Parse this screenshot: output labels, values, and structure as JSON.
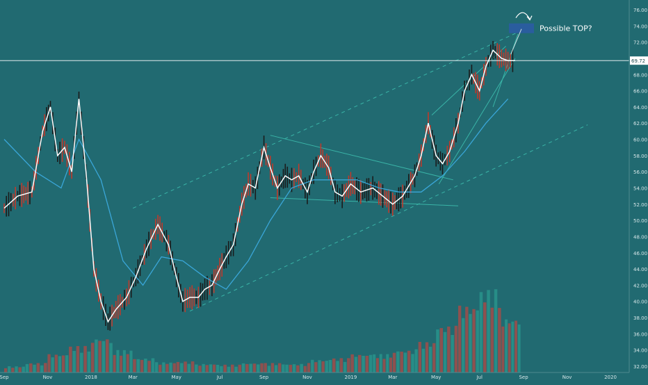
{
  "colors": {
    "background": "#216a71",
    "price_line": "#ffffff",
    "candle_up": "#1b1b1b",
    "candle_down": "#c0392b",
    "ma": "#3aa6d8",
    "trend": "#3ab5a8",
    "volume_up": "#2a9a8f",
    "volume_down": "#b24a44",
    "annotation_box": "#2a5d9e",
    "price_tag": "#ffffff"
  },
  "annotation": {
    "text": "Possible TOP?"
  },
  "last_price": "69.72",
  "chart_data": {
    "type": "line",
    "title": "",
    "xlabel": "",
    "ylabel": "",
    "ylim": [
      31.0,
      77.0
    ],
    "y_ticks": [
      "76.00",
      "74.00",
      "72.00",
      "70.00",
      "68.00",
      "66.00",
      "64.00",
      "62.00",
      "60.00",
      "58.00",
      "56.00",
      "54.00",
      "52.00",
      "50.00",
      "48.00",
      "46.00",
      "44.00",
      "42.00",
      "40.00",
      "38.00",
      "36.00",
      "34.00",
      "32.00"
    ],
    "x_ticks": [
      "Sep",
      "Nov",
      "2018",
      "Mar",
      "May",
      "Jul",
      "Sep",
      "Nov",
      "2019",
      "Mar",
      "May",
      "Jul",
      "Sep",
      "Nov",
      "2020"
    ],
    "grid": false,
    "series": [
      {
        "x": [
          "2017-09-01",
          "2017-09-20",
          "2017-10-10",
          "2017-10-25",
          "2017-11-05",
          "2017-11-15",
          "2017-11-25",
          "2017-12-05",
          "2017-12-15",
          "2017-12-25",
          "2018-01-05",
          "2018-01-15",
          "2018-01-25",
          "2018-02-05",
          "2018-02-20",
          "2018-03-05",
          "2018-03-20",
          "2018-04-05",
          "2018-04-20",
          "2018-05-01",
          "2018-05-10",
          "2018-05-20",
          "2018-06-01",
          "2018-06-10",
          "2018-06-20",
          "2018-07-01",
          "2018-07-10",
          "2018-07-20",
          "2018-08-01",
          "2018-08-10",
          "2018-08-20",
          "2018-09-01",
          "2018-09-10",
          "2018-09-20",
          "2018-10-01",
          "2018-10-10",
          "2018-10-20",
          "2018-11-01",
          "2018-11-10",
          "2018-11-20",
          "2018-12-01",
          "2018-12-10",
          "2018-12-20",
          "2019-01-01",
          "2019-01-15",
          "2019-02-01",
          "2019-02-15",
          "2019-03-01",
          "2019-03-15",
          "2019-04-01",
          "2019-04-10",
          "2019-04-20",
          "2019-05-01",
          "2019-05-10",
          "2019-05-20",
          "2019-06-01",
          "2019-06-10",
          "2019-06-20",
          "2019-07-01",
          "2019-07-10",
          "2019-07-20",
          "2019-08-01",
          "2019-08-10",
          "2019-08-20"
        ],
        "values": [
          51.5,
          53.0,
          53.5,
          61.0,
          64.0,
          58.0,
          59.0,
          56.0,
          65.0,
          56.0,
          44.0,
          40.0,
          37.5,
          39.0,
          40.5,
          43.0,
          46.5,
          49.5,
          47.0,
          43.0,
          40.0,
          40.5,
          40.5,
          41.5,
          42.0,
          44.0,
          45.5,
          47.0,
          52.0,
          54.5,
          54.0,
          59.0,
          56.5,
          54.0,
          55.5,
          55.0,
          55.5,
          53.5,
          56.0,
          58.0,
          56.5,
          53.5,
          53.0,
          54.5,
          53.5,
          54.0,
          53.0,
          52.0,
          53.0,
          55.5,
          58.0,
          62.0,
          58.0,
          57.0,
          58.5,
          62.0,
          66.0,
          68.0,
          66.0,
          69.0,
          71.0,
          70.0,
          69.72,
          69.72
        ]
      },
      {
        "x": [
          "2017-09-01",
          "2017-10-15",
          "2017-11-20",
          "2017-12-15",
          "2018-01-15",
          "2018-02-15",
          "2018-03-15",
          "2018-04-10",
          "2018-05-10",
          "2018-06-10",
          "2018-07-10",
          "2018-08-10",
          "2018-09-10",
          "2018-10-10",
          "2018-11-10",
          "2018-12-10",
          "2019-01-10",
          "2019-02-10",
          "2019-03-10",
          "2019-04-10",
          "2019-05-10",
          "2019-06-10",
          "2019-07-10",
          "2019-08-10"
        ],
        "values": [
          60.0,
          56.0,
          54.0,
          60.0,
          55.0,
          45.0,
          42.0,
          45.5,
          45.0,
          43.0,
          41.5,
          45.0,
          50.0,
          54.0,
          55.0,
          55.0,
          55.0,
          54.0,
          53.5,
          53.5,
          55.5,
          58.5,
          62.0,
          65.0
        ]
      }
    ],
    "volume_max": 42.5,
    "volume": [
      {
        "x": "2017-09",
        "value": 32.0,
        "dir": "down"
      },
      {
        "x": "2017-10",
        "value": 32.4,
        "dir": "up"
      },
      {
        "x": "2017-11",
        "value": 33.5,
        "dir": "down"
      },
      {
        "x": "2017-12",
        "value": 34.5,
        "dir": "down"
      },
      {
        "x": "2018-01",
        "value": 35.5,
        "dir": "down"
      },
      {
        "x": "2018-02",
        "value": 34.0,
        "dir": "down"
      },
      {
        "x": "2018-03",
        "value": 33.0,
        "dir": "down"
      },
      {
        "x": "2018-04",
        "value": 32.5,
        "dir": "up"
      },
      {
        "x": "2018-05",
        "value": 32.6,
        "dir": "down"
      },
      {
        "x": "2018-06",
        "value": 32.3,
        "dir": "down"
      },
      {
        "x": "2018-07",
        "value": 32.2,
        "dir": "up"
      },
      {
        "x": "2018-08",
        "value": 32.4,
        "dir": "up"
      },
      {
        "x": "2018-09",
        "value": 32.4,
        "dir": "down"
      },
      {
        "x": "2018-10",
        "value": 32.3,
        "dir": "up"
      },
      {
        "x": "2018-11",
        "value": 32.8,
        "dir": "down"
      },
      {
        "x": "2018-12",
        "value": 33.0,
        "dir": "up"
      },
      {
        "x": "2019-01",
        "value": 33.5,
        "dir": "down"
      },
      {
        "x": "2019-02",
        "value": 33.5,
        "dir": "up"
      },
      {
        "x": "2019-03",
        "value": 34.0,
        "dir": "down"
      },
      {
        "x": "2019-04",
        "value": 35.0,
        "dir": "up"
      },
      {
        "x": "2019-05",
        "value": 37.0,
        "dir": "up"
      },
      {
        "x": "2019-06",
        "value": 39.5,
        "dir": "down"
      },
      {
        "x": "2019-07",
        "value": 41.5,
        "dir": "up"
      },
      {
        "x": "2019-08",
        "value": 38.0,
        "dir": "down"
      }
    ],
    "trendlines": [
      {
        "x": [
          "2018-03-01",
          "2019-08-31"
        ],
        "y": [
          51.5,
          73.5
        ],
        "style": "dashed"
      },
      {
        "x": [
          "2018-05-20",
          "2019-11-30"
        ],
        "y": [
          38.8,
          61.8
        ],
        "style": "dashed"
      },
      {
        "x": [
          "2018-09-10",
          "2019-05-25"
        ],
        "y": [
          60.5,
          55.0
        ],
        "style": "solid"
      },
      {
        "x": [
          "2018-09-10",
          "2019-06-01"
        ],
        "y": [
          52.8,
          51.8
        ],
        "style": "solid"
      },
      {
        "x": [
          "2019-04-25",
          "2019-08-07"
        ],
        "y": [
          63.0,
          71.5
        ],
        "style": "solid"
      },
      {
        "x": [
          "2019-05-05",
          "2019-08-20"
        ],
        "y": [
          54.5,
          70.0
        ],
        "style": "solid"
      },
      {
        "x": [
          "2019-07-20",
          "2019-08-24"
        ],
        "y": [
          64.0,
          73.0
        ],
        "style": "solid"
      }
    ],
    "annotation_point": {
      "x": "2019-08-25",
      "y": 73.8
    }
  }
}
